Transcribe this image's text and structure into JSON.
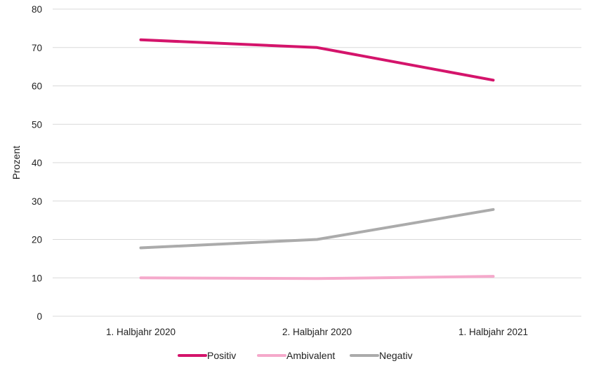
{
  "chart_data": {
    "type": "line",
    "title": "",
    "xlabel": "",
    "ylabel": "Prozent",
    "categories": [
      "1. Halbjahr 2020",
      "2. Halbjahr 2020",
      "1. Halbjahr 2021"
    ],
    "ylim": [
      0,
      80
    ],
    "yticks": [
      0,
      10,
      20,
      30,
      40,
      50,
      60,
      70,
      80
    ],
    "grid": true,
    "legend_position": "bottom",
    "series": [
      {
        "name": "Positiv",
        "color": "#d4146b",
        "values": [
          72,
          70,
          61.5
        ]
      },
      {
        "name": "Ambivalent",
        "color": "#f5a9cb",
        "values": [
          10,
          9.8,
          10.4
        ]
      },
      {
        "name": "Negativ",
        "color": "#ababab",
        "values": [
          17.8,
          20,
          27.8
        ]
      }
    ]
  }
}
